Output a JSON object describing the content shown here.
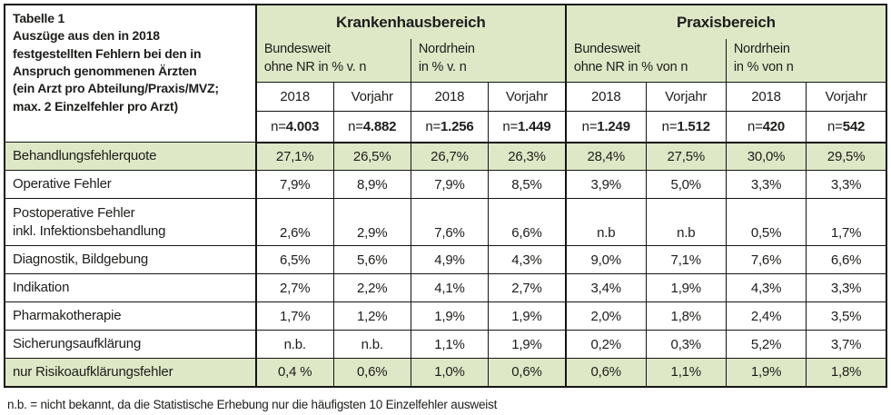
{
  "colors": {
    "highlight_green": "#dee8c6",
    "border": "#141414",
    "text": "#1d1d1b"
  },
  "title_block": {
    "lines": [
      "Tabelle 1",
      "Auszüge aus den in 2018",
      "festgestellten Fehlern bei den in",
      "Anspruch genommenen Ärzten",
      "(ein Arzt pro Abteilung/Praxis/MVZ;",
      "max. 2 Einzelfehler pro Arzt)"
    ]
  },
  "groups": [
    {
      "name": "Krankenhausbereich",
      "subgroups": [
        {
          "line1": "Bundesweit",
          "line2": "ohne NR in % v. n"
        },
        {
          "line1": "Nordrhein",
          "line2": "in % v. n"
        }
      ]
    },
    {
      "name": "Praxisbereich",
      "subgroups": [
        {
          "line1": "Bundesweit",
          "line2": "ohne NR in % von n"
        },
        {
          "line1": "Nordrhein",
          "line2": "in % von n"
        }
      ]
    }
  ],
  "year_headers": [
    "2018",
    "Vorjahr",
    "2018",
    "Vorjahr",
    "2018",
    "Vorjahr",
    "2018",
    "Vorjahr"
  ],
  "n_prefix": "n=",
  "n_values": [
    "4.003",
    "4.882",
    "1.256",
    "1.449",
    "1.249",
    "1.512",
    "420",
    "542"
  ],
  "rows": [
    {
      "label": "Behandlungsfehlerquote",
      "highlight": true,
      "values": [
        "27,1%",
        "26,5%",
        "26,7%",
        "26,3%",
        "28,4%",
        "27,5%",
        "30,0%",
        "29,5%"
      ]
    },
    {
      "label": "Operative Fehler",
      "highlight": false,
      "values": [
        "7,9%",
        "8,9%",
        "7,9%",
        "8,5%",
        "3,9%",
        "5,0%",
        "3,3%",
        "3,3%"
      ]
    },
    {
      "label": "Postoperative Fehler",
      "label2": "inkl. Infektionsbehandlung",
      "highlight": false,
      "values": [
        "2,6%",
        "2,9%",
        "7,6%",
        "6,6%",
        "n.b",
        "n.b",
        "0,5%",
        "1,7%"
      ]
    },
    {
      "label": "Diagnostik, Bildgebung",
      "highlight": false,
      "values": [
        "6,5%",
        "5,6%",
        "4,9%",
        "4,3%",
        "9,0%",
        "7,1%",
        "7,6%",
        "6,6%"
      ]
    },
    {
      "label": "Indikation",
      "highlight": false,
      "values": [
        "2,7%",
        "2,2%",
        "4,1%",
        "2,7%",
        "3,4%",
        "1,9%",
        "4,3%",
        "3,3%"
      ]
    },
    {
      "label": "Pharmakotherapie",
      "highlight": false,
      "values": [
        "1,7%",
        "1,2%",
        "1,9%",
        "1,9%",
        "2,0%",
        "1,8%",
        "2,4%",
        "3,5%"
      ]
    },
    {
      "label": "Sicherungsaufklärung",
      "highlight": false,
      "values": [
        "n.b.",
        "n.b.",
        "1,1%",
        "1,9%",
        "0,2%",
        "0,3%",
        "5,2%",
        "3,7%"
      ]
    },
    {
      "label": "nur Risikoaufklärungsfehler",
      "highlight": true,
      "values": [
        "0,4 %",
        "0,6%",
        "1,0%",
        "0,6%",
        "0,6%",
        "1,1%",
        "1,9%",
        "1,8%"
      ]
    }
  ],
  "footnote": "n.b. = nicht bekannt, da die Statistische Erhebung nur die häufigsten 10 Einzelfehler ausweist"
}
